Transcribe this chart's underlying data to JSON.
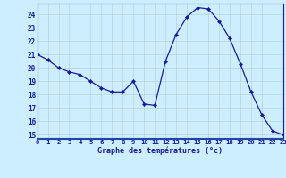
{
  "hours": [
    0,
    1,
    2,
    3,
    4,
    5,
    6,
    7,
    8,
    9,
    10,
    11,
    12,
    13,
    14,
    15,
    16,
    17,
    18,
    19,
    20,
    21,
    22,
    23
  ],
  "temps": [
    21.0,
    20.6,
    20.0,
    19.7,
    19.5,
    19.0,
    18.5,
    18.2,
    18.2,
    19.0,
    17.3,
    17.2,
    20.5,
    22.5,
    23.8,
    24.5,
    24.4,
    23.5,
    22.2,
    20.3,
    18.2,
    16.5,
    15.3,
    15.0
  ],
  "bg_color": "#cceeff",
  "line_color": "#1a1a99",
  "marker_color": "#1a1a99",
  "grid_color_minor": "#b0cccc",
  "grid_color_major": "#99bbbb",
  "xlabel": "Graphe des températures (°c)",
  "yticks": [
    15,
    16,
    17,
    18,
    19,
    20,
    21,
    22,
    23,
    24
  ],
  "xlim": [
    0,
    23
  ],
  "ylim": [
    14.7,
    24.8
  ],
  "xlabel_color": "#1a1a99",
  "tick_label_color": "#1a1a99",
  "spine_color": "#1a1a99",
  "bottom_bar_color": "#2244aa"
}
